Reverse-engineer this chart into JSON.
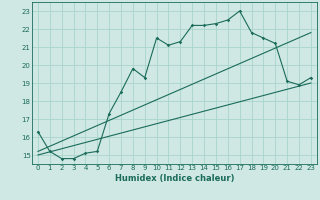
{
  "xlabel": "Humidex (Indice chaleur)",
  "bg_color": "#cfe8e4",
  "grid_color": "#a8d4cc",
  "line_color": "#1a6b5a",
  "xlim": [
    -0.5,
    23.5
  ],
  "ylim": [
    14.5,
    23.5
  ],
  "yticks": [
    15,
    16,
    17,
    18,
    19,
    20,
    21,
    22,
    23
  ],
  "xticks": [
    0,
    1,
    2,
    3,
    4,
    5,
    6,
    7,
    8,
    9,
    10,
    11,
    12,
    13,
    14,
    15,
    16,
    17,
    18,
    19,
    20,
    21,
    22,
    23
  ],
  "main_line_x": [
    0,
    1,
    2,
    3,
    4,
    5,
    6,
    7,
    8,
    9,
    10,
    11,
    12,
    13,
    14,
    15,
    16,
    17,
    18,
    19,
    20,
    21,
    22,
    23
  ],
  "main_line_y": [
    16.3,
    15.2,
    14.8,
    14.8,
    15.1,
    15.2,
    17.3,
    18.5,
    19.8,
    19.3,
    21.5,
    21.1,
    21.3,
    22.2,
    22.2,
    22.3,
    22.5,
    23.0,
    21.8,
    21.5,
    21.2,
    19.1,
    18.9,
    19.3
  ],
  "reg_line1_x": [
    0,
    23
  ],
  "reg_line1_y": [
    15.0,
    19.0
  ],
  "reg_line2_x": [
    0,
    23
  ],
  "reg_line2_y": [
    15.2,
    21.8
  ]
}
